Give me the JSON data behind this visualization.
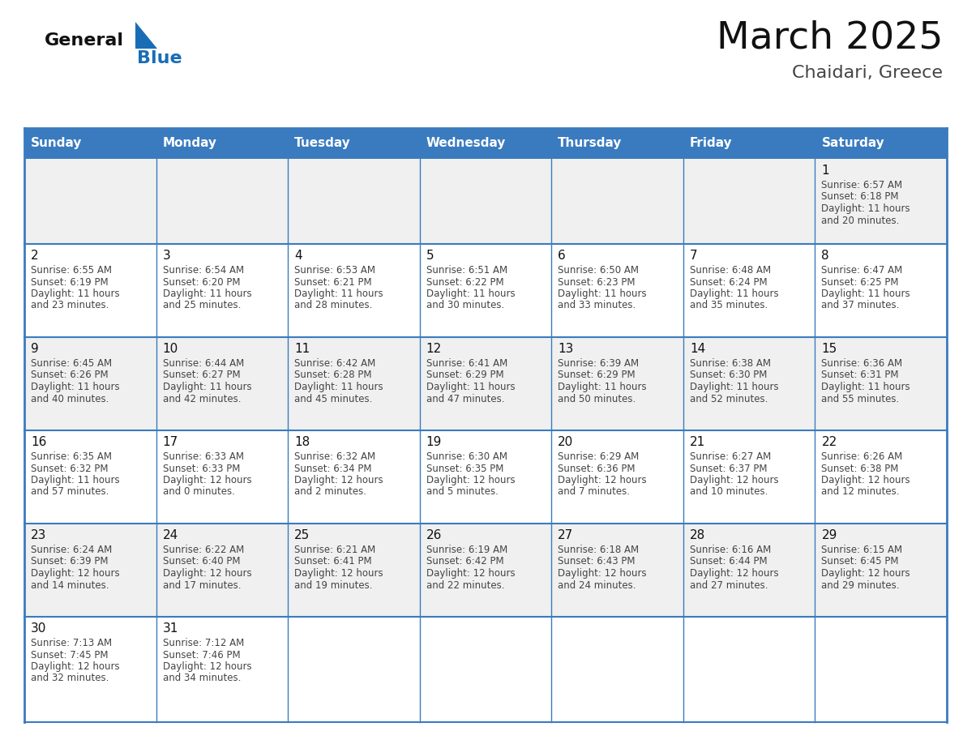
{
  "title": "March 2025",
  "subtitle": "Chaidari, Greece",
  "days_of_week": [
    "Sunday",
    "Monday",
    "Tuesday",
    "Wednesday",
    "Thursday",
    "Friday",
    "Saturday"
  ],
  "header_bg": "#3a7bbf",
  "header_text": "#ffffff",
  "row_bg_odd": "#f0f0f0",
  "row_bg_even": "#ffffff",
  "grid_line_color": "#3a7bbf",
  "title_color": "#111111",
  "subtitle_color": "#444444",
  "info_text_color": "#444444",
  "day_number_color": "#111111",
  "calendar": [
    [
      null,
      null,
      null,
      null,
      null,
      null,
      {
        "day": "1",
        "sunrise": "6:57 AM",
        "sunset": "6:18 PM",
        "daylight": "11 hours",
        "daylight2": "and 20 minutes."
      }
    ],
    [
      {
        "day": "2",
        "sunrise": "6:55 AM",
        "sunset": "6:19 PM",
        "daylight": "11 hours",
        "daylight2": "and 23 minutes."
      },
      {
        "day": "3",
        "sunrise": "6:54 AM",
        "sunset": "6:20 PM",
        "daylight": "11 hours",
        "daylight2": "and 25 minutes."
      },
      {
        "day": "4",
        "sunrise": "6:53 AM",
        "sunset": "6:21 PM",
        "daylight": "11 hours",
        "daylight2": "and 28 minutes."
      },
      {
        "day": "5",
        "sunrise": "6:51 AM",
        "sunset": "6:22 PM",
        "daylight": "11 hours",
        "daylight2": "and 30 minutes."
      },
      {
        "day": "6",
        "sunrise": "6:50 AM",
        "sunset": "6:23 PM",
        "daylight": "11 hours",
        "daylight2": "and 33 minutes."
      },
      {
        "day": "7",
        "sunrise": "6:48 AM",
        "sunset": "6:24 PM",
        "daylight": "11 hours",
        "daylight2": "and 35 minutes."
      },
      {
        "day": "8",
        "sunrise": "6:47 AM",
        "sunset": "6:25 PM",
        "daylight": "11 hours",
        "daylight2": "and 37 minutes."
      }
    ],
    [
      {
        "day": "9",
        "sunrise": "6:45 AM",
        "sunset": "6:26 PM",
        "daylight": "11 hours",
        "daylight2": "and 40 minutes."
      },
      {
        "day": "10",
        "sunrise": "6:44 AM",
        "sunset": "6:27 PM",
        "daylight": "11 hours",
        "daylight2": "and 42 minutes."
      },
      {
        "day": "11",
        "sunrise": "6:42 AM",
        "sunset": "6:28 PM",
        "daylight": "11 hours",
        "daylight2": "and 45 minutes."
      },
      {
        "day": "12",
        "sunrise": "6:41 AM",
        "sunset": "6:29 PM",
        "daylight": "11 hours",
        "daylight2": "and 47 minutes."
      },
      {
        "day": "13",
        "sunrise": "6:39 AM",
        "sunset": "6:29 PM",
        "daylight": "11 hours",
        "daylight2": "and 50 minutes."
      },
      {
        "day": "14",
        "sunrise": "6:38 AM",
        "sunset": "6:30 PM",
        "daylight": "11 hours",
        "daylight2": "and 52 minutes."
      },
      {
        "day": "15",
        "sunrise": "6:36 AM",
        "sunset": "6:31 PM",
        "daylight": "11 hours",
        "daylight2": "and 55 minutes."
      }
    ],
    [
      {
        "day": "16",
        "sunrise": "6:35 AM",
        "sunset": "6:32 PM",
        "daylight": "11 hours",
        "daylight2": "and 57 minutes."
      },
      {
        "day": "17",
        "sunrise": "6:33 AM",
        "sunset": "6:33 PM",
        "daylight": "12 hours",
        "daylight2": "and 0 minutes."
      },
      {
        "day": "18",
        "sunrise": "6:32 AM",
        "sunset": "6:34 PM",
        "daylight": "12 hours",
        "daylight2": "and 2 minutes."
      },
      {
        "day": "19",
        "sunrise": "6:30 AM",
        "sunset": "6:35 PM",
        "daylight": "12 hours",
        "daylight2": "and 5 minutes."
      },
      {
        "day": "20",
        "sunrise": "6:29 AM",
        "sunset": "6:36 PM",
        "daylight": "12 hours",
        "daylight2": "and 7 minutes."
      },
      {
        "day": "21",
        "sunrise": "6:27 AM",
        "sunset": "6:37 PM",
        "daylight": "12 hours",
        "daylight2": "and 10 minutes."
      },
      {
        "day": "22",
        "sunrise": "6:26 AM",
        "sunset": "6:38 PM",
        "daylight": "12 hours",
        "daylight2": "and 12 minutes."
      }
    ],
    [
      {
        "day": "23",
        "sunrise": "6:24 AM",
        "sunset": "6:39 PM",
        "daylight": "12 hours",
        "daylight2": "and 14 minutes."
      },
      {
        "day": "24",
        "sunrise": "6:22 AM",
        "sunset": "6:40 PM",
        "daylight": "12 hours",
        "daylight2": "and 17 minutes."
      },
      {
        "day": "25",
        "sunrise": "6:21 AM",
        "sunset": "6:41 PM",
        "daylight": "12 hours",
        "daylight2": "and 19 minutes."
      },
      {
        "day": "26",
        "sunrise": "6:19 AM",
        "sunset": "6:42 PM",
        "daylight": "12 hours",
        "daylight2": "and 22 minutes."
      },
      {
        "day": "27",
        "sunrise": "6:18 AM",
        "sunset": "6:43 PM",
        "daylight": "12 hours",
        "daylight2": "and 24 minutes."
      },
      {
        "day": "28",
        "sunrise": "6:16 AM",
        "sunset": "6:44 PM",
        "daylight": "12 hours",
        "daylight2": "and 27 minutes."
      },
      {
        "day": "29",
        "sunrise": "6:15 AM",
        "sunset": "6:45 PM",
        "daylight": "12 hours",
        "daylight2": "and 29 minutes."
      }
    ],
    [
      {
        "day": "30",
        "sunrise": "7:13 AM",
        "sunset": "7:45 PM",
        "daylight": "12 hours",
        "daylight2": "and 32 minutes."
      },
      {
        "day": "31",
        "sunrise": "7:12 AM",
        "sunset": "7:46 PM",
        "daylight": "12 hours",
        "daylight2": "and 34 minutes."
      },
      null,
      null,
      null,
      null,
      null
    ]
  ],
  "logo_general_color": "#111111",
  "logo_blue_color": "#1a6db5",
  "logo_triangle_color": "#1a6db5"
}
